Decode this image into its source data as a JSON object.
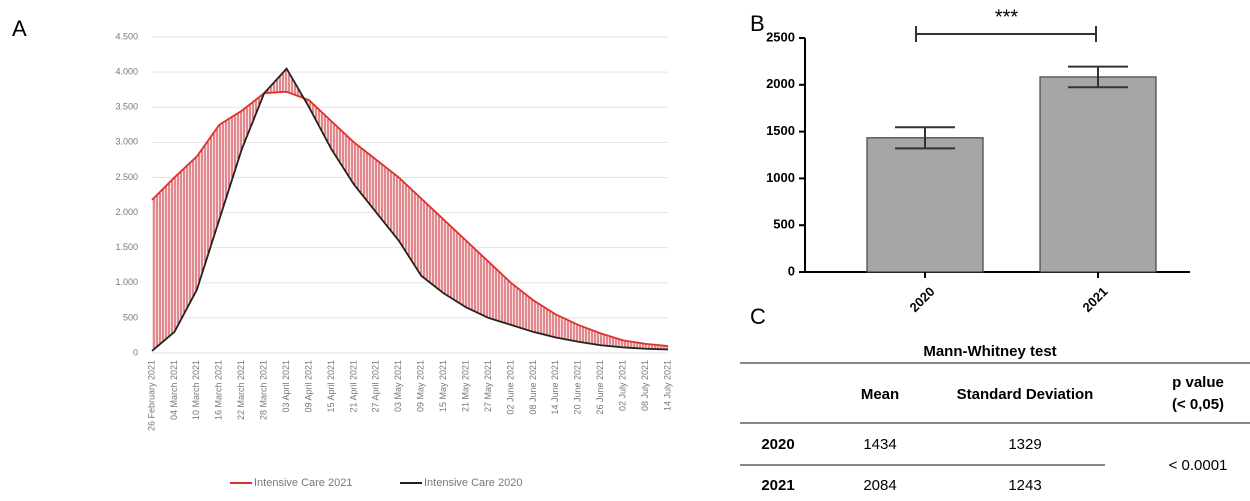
{
  "panel_labels": [
    "A",
    "B",
    "C"
  ],
  "chart_data": [
    {
      "type": "line",
      "categories": [
        "26 February 2021",
        "04 March 2021",
        "10 March 2021",
        "16 March 2021",
        "22 March 2021",
        "28 March 2021",
        "03 April 2021",
        "09 April 2021",
        "15 April 2021",
        "21 April 2021",
        "27 April 2021",
        "03 May 2021",
        "09 May 2021",
        "15 May 2021",
        "21 May 2021",
        "27 May 2021",
        "02 June 2021",
        "08 June 2021",
        "14 June 2021",
        "20 June 2021",
        "26 June 2021",
        "02 July 2021",
        "08 July 2021",
        "14 July 2021"
      ],
      "series": [
        {
          "name": "Intensive Care 2021",
          "color": "#e0302a",
          "values": [
            2180,
            2500,
            2800,
            3250,
            3450,
            3700,
            3720,
            3600,
            3300,
            3000,
            2750,
            2500,
            2200,
            1900,
            1600,
            1300,
            1000,
            750,
            550,
            400,
            280,
            180,
            130,
            100
          ]
        },
        {
          "name": "Intensive Care 2020",
          "color": "#222222",
          "values": [
            30,
            300,
            900,
            1900,
            2900,
            3700,
            4050,
            3500,
            2900,
            2400,
            2000,
            1600,
            1100,
            850,
            650,
            500,
            400,
            300,
            220,
            160,
            110,
            80,
            60,
            50
          ]
        }
      ],
      "ylim": [
        0,
        4500
      ],
      "yticks": [
        0,
        500,
        {
          "value": 1000,
          "label": "1.000"
        },
        {
          "value": 1500,
          "label": "1.500"
        },
        {
          "value": 2000,
          "label": "2.000"
        },
        {
          "value": 2500,
          "label": "2.500"
        },
        {
          "value": 3000,
          "label": "3.000"
        },
        {
          "value": 3500,
          "label": "3.500"
        },
        {
          "value": 4000,
          "label": "4.000"
        },
        {
          "value": 4500,
          "label": "4.500"
        }
      ],
      "grid": true,
      "legend": "bottom"
    },
    {
      "type": "bar",
      "categories": [
        "2020",
        "2021"
      ],
      "values": [
        1434,
        2084
      ],
      "errors": [
        113,
        110
      ],
      "color": "#a6a6a6",
      "ylim": [
        0,
        2500
      ],
      "yticks": [
        0,
        500,
        1000,
        1500,
        2000,
        2500
      ],
      "annotation": "***"
    }
  ],
  "table": {
    "title": "Mann-Whitney test",
    "header": [
      "Mean",
      "Standard Deviation",
      [
        "p value",
        "(< 0,05)"
      ]
    ],
    "rows": [
      [
        "2020",
        "1434",
        "1329"
      ],
      [
        "2021",
        "2084",
        "1243"
      ]
    ],
    "p_value": "< 0.0001"
  }
}
